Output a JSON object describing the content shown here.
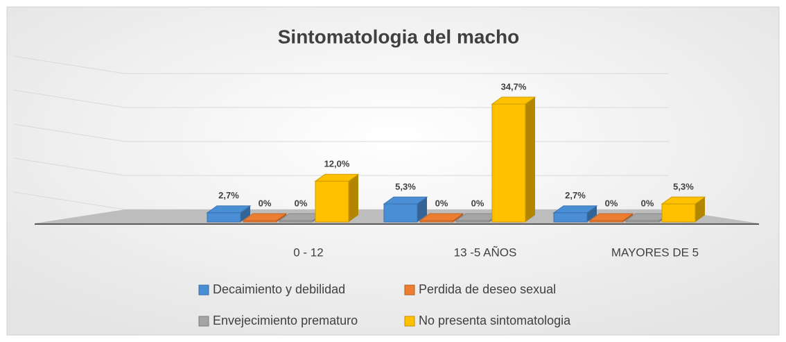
{
  "chart_data": {
    "type": "bar3d",
    "title": "Sintomatologia del macho",
    "categories": [
      "0 - 12",
      "13 -5 AÑOS",
      "MAYORES DE 5"
    ],
    "series": [
      {
        "name": "Decaimiento y debilidad",
        "color": "#4a8fd6",
        "values": [
          2.7,
          5.3,
          2.7
        ],
        "value_labels": [
          "2,7%",
          "5,3%",
          "2,7%"
        ]
      },
      {
        "name": "Perdida de deseo sexual",
        "color": "#ed7d31",
        "values": [
          0,
          0,
          0
        ],
        "value_labels": [
          "0%",
          "0%",
          "0%"
        ]
      },
      {
        "name": "Envejecimiento prematuro",
        "color": "#a5a5a5",
        "values": [
          0,
          0,
          0
        ],
        "value_labels": [
          "0%",
          "0%",
          "0%"
        ]
      },
      {
        "name": "No presenta sintomatologia",
        "color": "#ffc000",
        "values": [
          12.0,
          34.7,
          5.3
        ],
        "value_labels": [
          "12,0%",
          "34,7%",
          "5,3%"
        ]
      }
    ],
    "ylim": [
      0,
      40
    ],
    "yticks": [
      0,
      10,
      20,
      30,
      40
    ],
    "grid": true
  }
}
